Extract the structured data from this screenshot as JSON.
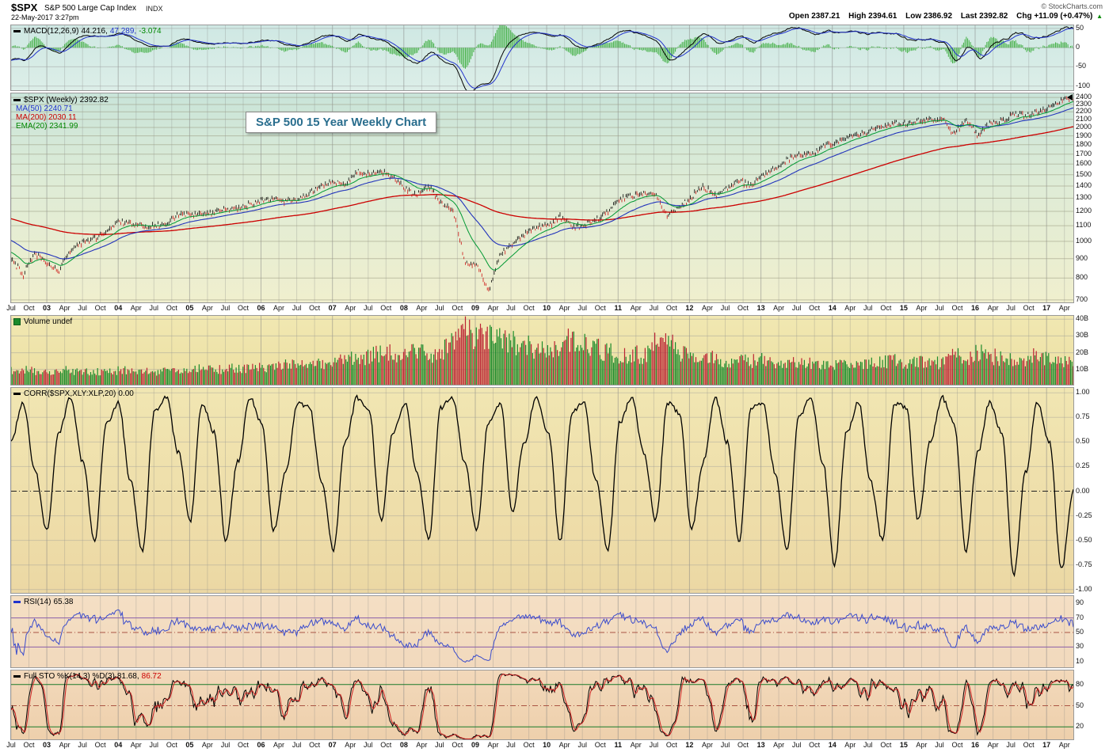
{
  "header": {
    "symbol": "$SPX",
    "name": "S&P 500 Large Cap Index",
    "exchange": "INDX",
    "datetime": "22-May-2017 3:27pm",
    "copyright": "© StockCharts.com",
    "quote": {
      "open_label": "Open",
      "open": "2387.21",
      "high_label": "High",
      "high": "2394.61",
      "low_label": "Low",
      "low": "2386.92",
      "last_label": "Last",
      "last": "2392.82",
      "chg_label": "Chg",
      "chg": "+11.09 (+0.47%)"
    }
  },
  "panels": {
    "macd": {
      "name": "MACD(12,26,9)",
      "v_macd": "44.216,",
      "v_signal": "47.289,",
      "v_hist": "-3.074",
      "axis": [
        "50",
        "0",
        "-50",
        "-100"
      ]
    },
    "price": {
      "main_label": "$SPX (Weekly)",
      "main_value": "2392.82",
      "ma50": "MA(50) 2240.71",
      "ma200": "MA(200) 2030.11",
      "ema20": "EMA(20) 2341.99",
      "axis": [
        "2400",
        "2300",
        "2200",
        "2100",
        "2000",
        "1900",
        "1800",
        "1700",
        "1600",
        "1500",
        "1400",
        "1300",
        "1200",
        "1100",
        "1000",
        "900",
        "800",
        "700"
      ]
    },
    "volume": {
      "name": "Volume undef",
      "axis": [
        "40B",
        "30B",
        "20B",
        "10B"
      ]
    },
    "corr": {
      "name": "CORR($SPX,XLY:XLP,20)",
      "value": "0.00",
      "axis": [
        "1.00",
        "0.75",
        "0.50",
        "0.25",
        "0.00",
        "-0.25",
        "-0.50",
        "-0.75",
        "-1.00"
      ]
    },
    "rsi": {
      "name": "RSI(14)",
      "value": "65.38",
      "axis": [
        "90",
        "70",
        "50",
        "30",
        "10"
      ]
    },
    "sto": {
      "name": "Full STO %K(14,3) %D(3)",
      "v_k": "81.68,",
      "v_d": "86.72",
      "axis": [
        "80",
        "50",
        "20"
      ]
    }
  },
  "x_axis": {
    "labels": [
      "Jul",
      "Oct",
      "03",
      "Apr",
      "Jul",
      "Oct",
      "04",
      "Apr",
      "Jul",
      "Oct",
      "05",
      "Apr",
      "Jul",
      "Oct",
      "06",
      "Apr",
      "Jul",
      "Oct",
      "07",
      "Apr",
      "Jul",
      "Oct",
      "08",
      "Apr",
      "Jul",
      "Oct",
      "09",
      "Apr",
      "Jul",
      "Oct",
      "10",
      "Apr",
      "Jul",
      "Oct",
      "11",
      "Apr",
      "Jul",
      "Oct",
      "12",
      "Apr",
      "Jul",
      "Oct",
      "13",
      "Apr",
      "Jul",
      "Oct",
      "14",
      "Apr",
      "Jul",
      "Oct",
      "15",
      "Apr",
      "Jul",
      "Oct",
      "16",
      "Apr",
      "Jul",
      "Oct",
      "17",
      "Apr"
    ]
  },
  "colors": {
    "price_up": "#000000",
    "price_down": "#cc1111",
    "ma50": "#2233bb",
    "ma200": "#cc0000",
    "ema20": "#009933",
    "macd_line": "#000000",
    "macd_signal": "#2233cc",
    "macd_hist": "#33aa33",
    "volume_up": "#1a8a2a",
    "volume_down": "#bb2233",
    "corr_line": "#000000",
    "rsi_line": "#3a4ccc",
    "sto_k": "#000000",
    "sto_d": "#cc2222",
    "band_rsi": "#8a5fa8",
    "band_sto": "#1a7a2a",
    "band_mid": "#aa5544",
    "title_text": "#2a6e8e"
  },
  "chart_data": [
    {
      "panel": "macd",
      "type": "line+histogram",
      "label": "MACD(12,26,9)",
      "current": {
        "macd": 44.216,
        "signal": 47.289,
        "hist": -3.074
      },
      "ylim": [
        -115,
        58
      ],
      "yticks": [
        50,
        0,
        -50,
        -100
      ],
      "derived_from": "price"
    },
    {
      "panel": "price",
      "type": "candlestick",
      "title": "S&P 500 15 Year Weekly Chart",
      "scale": "log",
      "x_start_year": 2002.54,
      "x_end_year": 2017.4,
      "sample_interval_months": 2,
      "values": [
        900,
        815,
        930,
        880,
        835,
        950,
        990,
        1020,
        1060,
        1130,
        1110,
        1100,
        1100,
        1115,
        1175,
        1185,
        1180,
        1190,
        1225,
        1225,
        1250,
        1280,
        1295,
        1270,
        1280,
        1335,
        1400,
        1430,
        1420,
        1525,
        1500,
        1525,
        1470,
        1380,
        1320,
        1400,
        1260,
        1220,
        880,
        870,
        735,
        920,
        980,
        1040,
        1090,
        1100,
        1160,
        1090,
        1100,
        1140,
        1200,
        1290,
        1320,
        1340,
        1320,
        1160,
        1230,
        1310,
        1400,
        1320,
        1380,
        1440,
        1400,
        1500,
        1560,
        1650,
        1690,
        1690,
        1800,
        1820,
        1870,
        1900,
        1970,
        1990,
        2060,
        2040,
        2090,
        2110,
        2100,
        1930,
        2080,
        1920,
        2050,
        2080,
        2170,
        2160,
        2200,
        2280,
        2360,
        2393
      ],
      "last": 2392.82,
      "ylim": [
        683,
        2460
      ],
      "yticks": [
        2400,
        2300,
        2200,
        2100,
        2000,
        1900,
        1800,
        1700,
        1600,
        1500,
        1400,
        1300,
        1200,
        1100,
        1000,
        900,
        800,
        700
      ],
      "overlays": [
        {
          "name": "MA(50)",
          "current": 2240.71
        },
        {
          "name": "MA(200)",
          "current": 2030.11
        },
        {
          "name": "EMA(20)",
          "current": 2341.99
        }
      ]
    },
    {
      "panel": "volume",
      "type": "bar",
      "label": "Volume undef",
      "unit": "billions",
      "values": [
        9.0,
        9.5,
        9.2,
        9.0,
        9.4,
        9.0,
        8.6,
        8.6,
        9.0,
        9.2,
        9.6,
        9.0,
        8.6,
        9.0,
        9.6,
        10.0,
        10.4,
        10.0,
        10.0,
        10.6,
        11.0,
        11.0,
        12.0,
        12.5,
        12.0,
        12.5,
        13.0,
        14.0,
        15.5,
        16.0,
        18.0,
        20.0,
        19.0,
        18.0,
        20.0,
        19.0,
        20.0,
        25.0,
        32.0,
        30.0,
        28.0,
        30.0,
        26.0,
        24.0,
        22.0,
        20.0,
        22.0,
        28.0,
        24.0,
        22.0,
        20.0,
        18.0,
        19.0,
        18.0,
        25.0,
        26.0,
        20.0,
        17.0,
        17.0,
        16.0,
        15.0,
        15.0,
        15.0,
        15.0,
        14.0,
        15.0,
        14.0,
        13.0,
        14.0,
        13.0,
        14.0,
        13.0,
        13.0,
        14.0,
        15.0,
        14.0,
        14.0,
        14.0,
        14.0,
        18.0,
        16.0,
        20.0,
        18.0,
        16.0,
        15.0,
        16.0,
        18.0,
        15.0,
        14.0,
        13.0
      ],
      "ylim": [
        0,
        42
      ],
      "yticks": [
        40,
        30,
        20,
        10
      ]
    },
    {
      "panel": "corr",
      "type": "line",
      "label": "CORR($SPX,XLY:XLP,20)",
      "current": 0.0,
      "values": [
        0.5,
        0.9,
        0.2,
        -0.4,
        0.6,
        0.95,
        0.3,
        -0.5,
        0.7,
        0.9,
        0.1,
        -0.6,
        0.8,
        0.95,
        0.4,
        -0.3,
        0.9,
        0.6,
        -0.5,
        0.3,
        0.95,
        0.7,
        -0.4,
        0.2,
        0.9,
        0.85,
        0.1,
        -0.6,
        0.5,
        0.95,
        0.8,
        -0.3,
        0.6,
        0.9,
        0.2,
        -0.5,
        0.85,
        0.95,
        0.3,
        -0.4,
        0.7,
        0.9,
        -0.2,
        0.5,
        0.95,
        0.6,
        -0.5,
        0.8,
        0.9,
        0.1,
        -0.6,
        0.7,
        0.95,
        0.4,
        -0.3,
        0.9,
        0.8,
        -0.4,
        0.3,
        0.95,
        0.5,
        -0.5,
        0.85,
        0.9,
        0.2,
        -0.6,
        0.75,
        0.95,
        0.3,
        -0.75,
        0.6,
        0.9,
        0.1,
        -0.5,
        0.9,
        0.85,
        -0.3,
        0.5,
        0.95,
        0.7,
        -0.6,
        0.4,
        0.9,
        0.6,
        -0.85,
        0.2,
        0.9,
        0.5,
        -0.8,
        0.0
      ],
      "ylim": [
        -1.05,
        1.05
      ],
      "yticks": [
        1.0,
        0.75,
        0.5,
        0.25,
        0.0,
        -0.25,
        -0.5,
        -0.75,
        -1.0
      ]
    },
    {
      "panel": "rsi",
      "type": "line",
      "label": "RSI(14)",
      "current": 65.38,
      "ylim": [
        0,
        100
      ],
      "yticks": [
        90,
        70,
        50,
        30,
        10
      ],
      "bands": {
        "upper": 70,
        "mid": 50,
        "lower": 30
      },
      "derived_from": "price"
    },
    {
      "panel": "sto",
      "type": "line",
      "label": "Full STO %K(14,3) %D(3)",
      "current": {
        "k": 81.68,
        "d": 86.72
      },
      "ylim": [
        0,
        100
      ],
      "yticks": [
        80,
        50,
        20
      ],
      "bands": {
        "upper": 80,
        "mid": 50,
        "lower": 20
      },
      "derived_from": "price"
    }
  ]
}
